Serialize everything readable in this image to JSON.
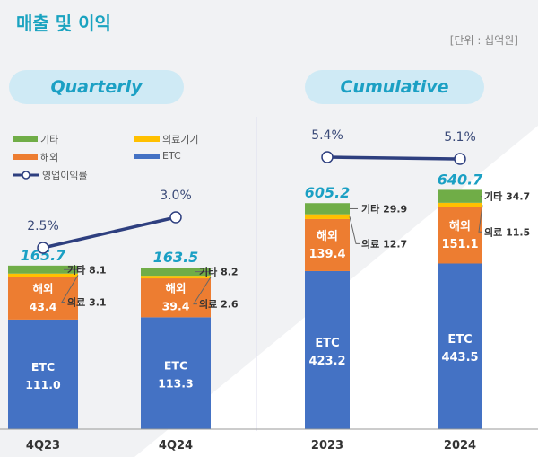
{
  "title": "매출 및 이익",
  "unit": "[단위 : 십억원]",
  "colors": {
    "etc": "#4472c4",
    "overseas": "#ed7d31",
    "medical": "#ffc000",
    "other": "#70ad47",
    "line": "#2e3f7f",
    "total": "#1ba0c4"
  },
  "legend": {
    "other": "기타",
    "medical": "의료기기",
    "overseas": "해외",
    "etc": "ETC",
    "margin": "영업이익률"
  },
  "chart_data": [
    {
      "type": "bar",
      "panel": "Quarterly",
      "stacked": true,
      "categories": [
        "4Q23",
        "4Q24"
      ],
      "series": [
        {
          "name": "ETC",
          "values": [
            111.0,
            113.3
          ]
        },
        {
          "name": "해외",
          "values": [
            43.4,
            39.4
          ]
        },
        {
          "name": "의료기기",
          "values": [
            3.1,
            2.6
          ]
        },
        {
          "name": "기타",
          "values": [
            8.1,
            8.2
          ]
        }
      ],
      "totals": [
        165.7,
        163.5
      ],
      "line": {
        "name": "영업이익률",
        "values": [
          2.5,
          3.0
        ],
        "labels": [
          "2.5%",
          "3.0%"
        ]
      },
      "seg_labels": {
        "etc": "ETC",
        "overseas": "해외",
        "other": "기타",
        "medical": "의료"
      }
    },
    {
      "type": "bar",
      "panel": "Cumulative",
      "stacked": true,
      "categories": [
        "2023",
        "2024"
      ],
      "series": [
        {
          "name": "ETC",
          "values": [
            423.2,
            443.5
          ]
        },
        {
          "name": "해외",
          "values": [
            139.4,
            151.1
          ]
        },
        {
          "name": "의료기기",
          "values": [
            12.7,
            11.5
          ]
        },
        {
          "name": "기타",
          "values": [
            29.9,
            34.7
          ]
        }
      ],
      "totals": [
        605.2,
        640.7
      ],
      "line": {
        "name": "영업이익률",
        "values": [
          5.4,
          5.1
        ],
        "labels": [
          "5.4%",
          "5.1%"
        ]
      },
      "seg_labels": {
        "etc": "ETC",
        "overseas": "해외",
        "other": "기타",
        "medical": "의료"
      }
    }
  ]
}
